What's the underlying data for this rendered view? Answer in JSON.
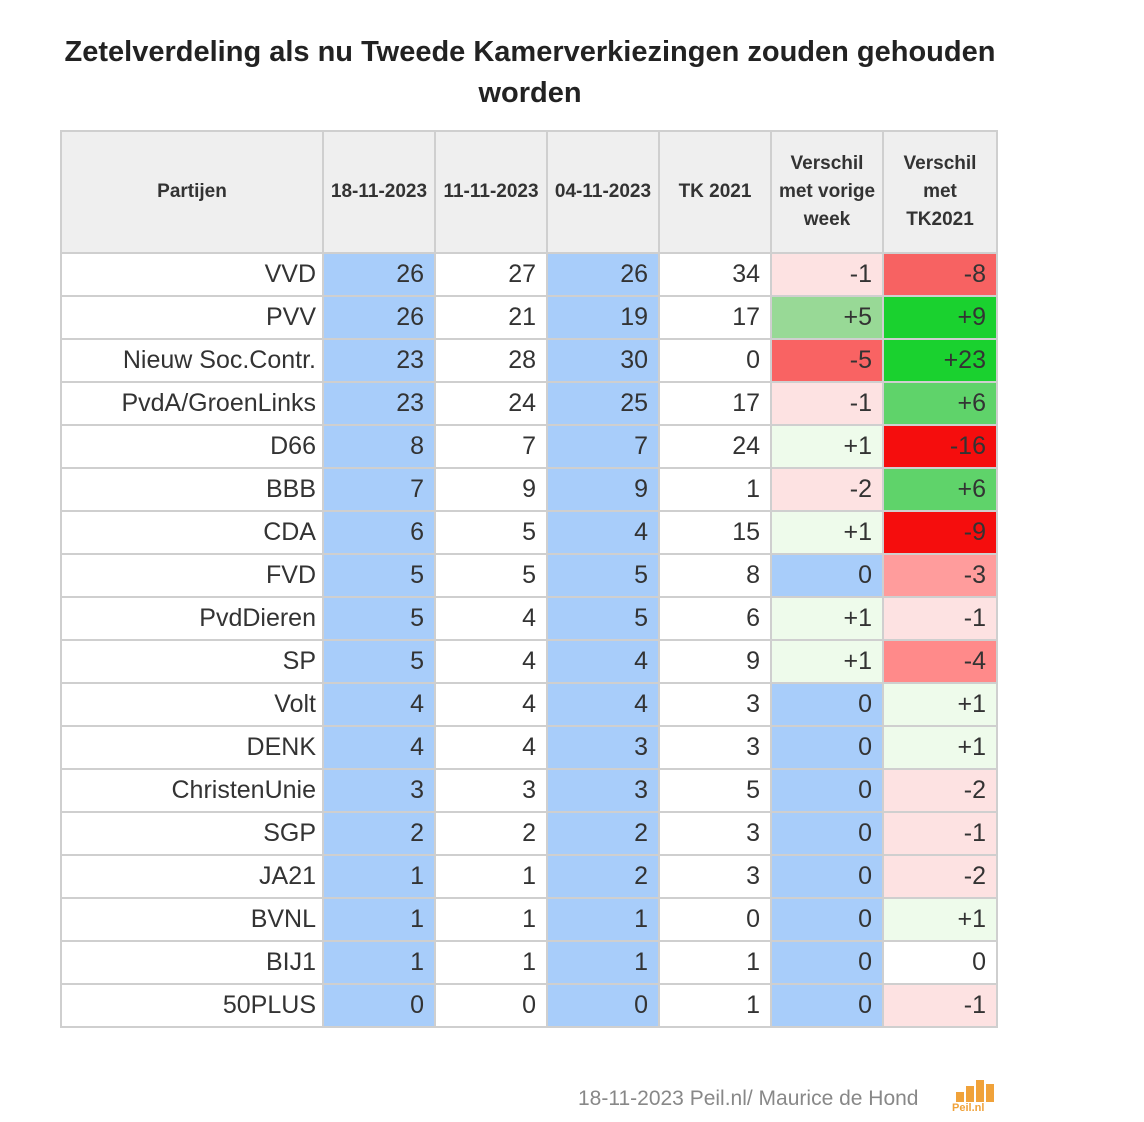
{
  "chart_data": {
    "type": "table",
    "title": "Zetelverdeling als nu Tweede Kamerverkiezingen zouden gehouden worden",
    "columns": [
      "Partijen",
      "18-11-2023",
      "11-11-2023",
      "04-11-2023",
      "TK 2021",
      "Verschil met vorige week",
      "Verschil met TK2021"
    ],
    "rows": [
      {
        "party": "VVD",
        "values": [
          "26",
          "27",
          "26",
          "34",
          "-1",
          "-8"
        ]
      },
      {
        "party": "PVV",
        "values": [
          "26",
          "21",
          "19",
          "17",
          "+5",
          "+9"
        ]
      },
      {
        "party": "Nieuw Soc.Contr.",
        "values": [
          "23",
          "28",
          "30",
          "0",
          "-5",
          "+23"
        ]
      },
      {
        "party": "PvdA/GroenLinks",
        "values": [
          "23",
          "24",
          "25",
          "17",
          "-1",
          "+6"
        ]
      },
      {
        "party": "D66",
        "values": [
          "8",
          "7",
          "7",
          "24",
          "+1",
          "-16"
        ]
      },
      {
        "party": "BBB",
        "values": [
          "7",
          "9",
          "9",
          "1",
          "-2",
          "+6"
        ]
      },
      {
        "party": "CDA",
        "values": [
          "6",
          "5",
          "4",
          "15",
          "+1",
          "-9"
        ]
      },
      {
        "party": "FVD",
        "values": [
          "5",
          "5",
          "5",
          "8",
          "0",
          "-3"
        ]
      },
      {
        "party": "PvdDieren",
        "values": [
          "5",
          "4",
          "5",
          "6",
          "+1",
          "-1"
        ]
      },
      {
        "party": "SP",
        "values": [
          "5",
          "4",
          "4",
          "9",
          "+1",
          "-4"
        ]
      },
      {
        "party": "Volt",
        "values": [
          "4",
          "4",
          "4",
          "3",
          "0",
          "+1"
        ]
      },
      {
        "party": "DENK",
        "values": [
          "4",
          "4",
          "3",
          "3",
          "0",
          "+1"
        ]
      },
      {
        "party": "ChristenUnie",
        "values": [
          "3",
          "3",
          "3",
          "5",
          "0",
          "-2"
        ]
      },
      {
        "party": "SGP",
        "values": [
          "2",
          "2",
          "2",
          "3",
          "0",
          "-1"
        ]
      },
      {
        "party": "JA21",
        "values": [
          "1",
          "1",
          "2",
          "3",
          "0",
          "-2"
        ]
      },
      {
        "party": "BVNL",
        "values": [
          "1",
          "1",
          "1",
          "0",
          "0",
          "+1"
        ]
      },
      {
        "party": "BIJ1",
        "values": [
          "1",
          "1",
          "1",
          "1",
          "0",
          "0"
        ]
      },
      {
        "party": "50PLUS",
        "values": [
          "0",
          "0",
          "0",
          "1",
          "0",
          "-1"
        ]
      }
    ],
    "highlight_color": "#a8cdfa",
    "diff_colors": {
      "+23": "#1ad12f",
      "+9": "#1ad12f",
      "+6": "#5fd36a",
      "+5": "#98d996",
      "+1": "#eefbeb",
      "0": "#ffffff",
      "-1": "#fde2e2",
      "-2": "#fde2e2",
      "-3": "#ff9c9c",
      "-4": "#ff8a8a",
      "-5": "#f96363",
      "-8": "#f76262",
      "-9": "#f50d0d",
      "-16": "#f50d0d"
    }
  },
  "footer": {
    "credit": "18-11-2023 Peil.nl/ Maurice de Hond",
    "logo_text": "Peil.nl"
  }
}
